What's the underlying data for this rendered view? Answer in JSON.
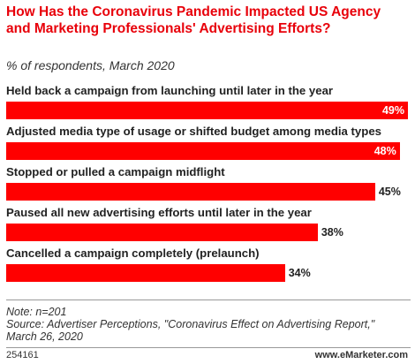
{
  "chart_data": {
    "type": "bar",
    "title": "How Has the Coronavirus Pandemic Impacted US Agency and Marketing Professionals' Advertising Efforts?",
    "subtitle": "% of respondents, March 2020",
    "categories": [
      "Held back a campaign from launching until later in the year",
      "Adjusted media type of usage or shifted budget among media types",
      "Stopped or pulled a campaign midflight",
      "Paused all new advertising efforts until later in the year",
      "Cancelled a campaign completely (prelaunch)"
    ],
    "values": [
      49,
      48,
      45,
      38,
      34
    ],
    "value_labels": [
      "49%",
      "48%",
      "45%",
      "38%",
      "34%"
    ],
    "color": "#ff0000",
    "note": "Note: n=201",
    "source": "Source: Advertiser Perceptions, \"Coronavirus Effect on Advertising Report,\" March 26, 2020",
    "id": "254161",
    "credit": "www.eMarketer.com"
  }
}
